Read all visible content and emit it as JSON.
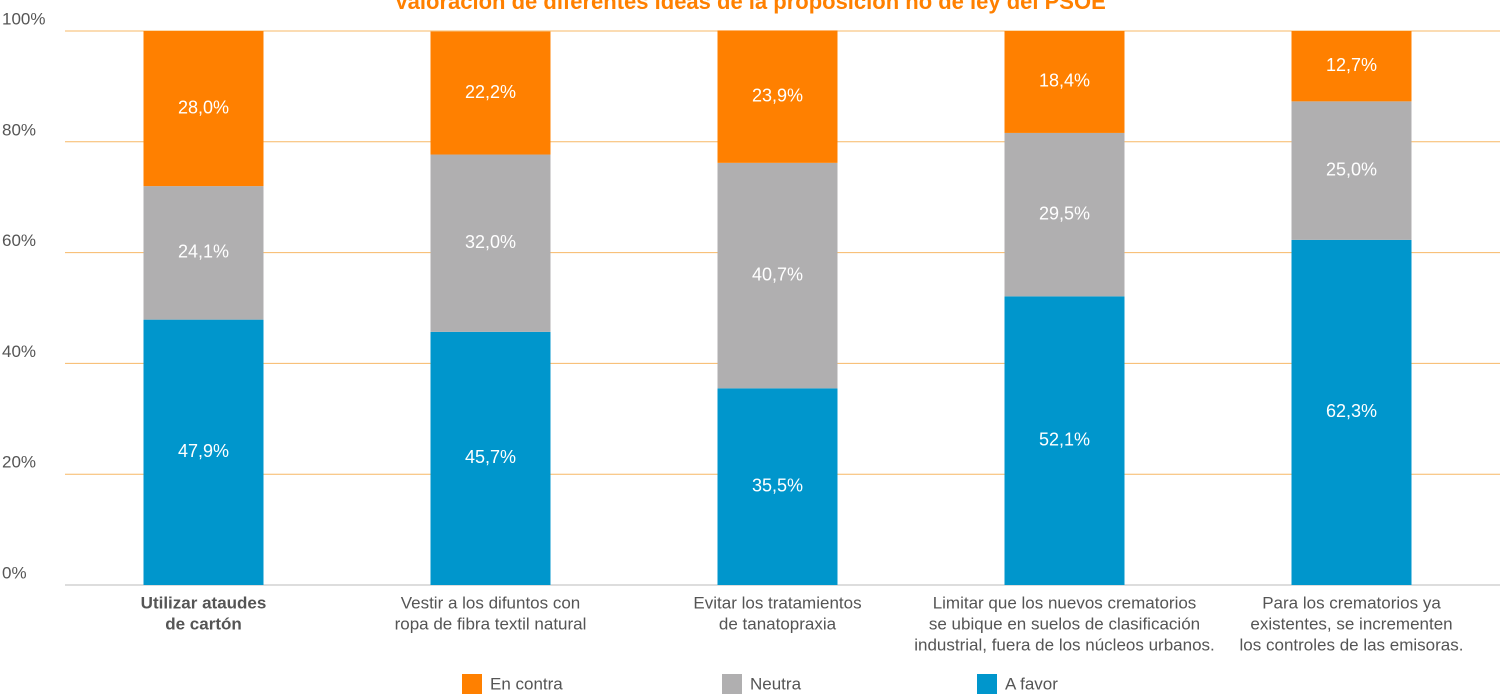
{
  "chart_data": {
    "type": "stacked_bar",
    "title": "Valoración de diferentes ideas de la proposición no de ley del PSOE",
    "categories": [
      [
        "Utilizar ataudes",
        "de cartón"
      ],
      [
        "Vestir a los difuntos con",
        "ropa de fibra textil natural"
      ],
      [
        "Evitar los tratamientos",
        "de tanatopraxia"
      ],
      [
        "Limitar que los nuevos  crematorios",
        "se ubique en suelos de clasificación",
        "industrial, fuera de los núcleos urbanos."
      ],
      [
        "Para los crematorios ya",
        "existentes, se incrementen",
        "los controles de las emisoras."
      ]
    ],
    "series": [
      {
        "name": "En contra",
        "color": "#ff8000",
        "values": [
          28.0,
          22.2,
          23.9,
          18.4,
          12.7
        ],
        "value_labels": [
          "28,0%",
          "22,2%",
          "23,9%",
          "18,4%",
          "12,7%"
        ]
      },
      {
        "name": "Neutra",
        "color": "#b0afb0",
        "values": [
          24.1,
          32.0,
          40.7,
          29.5,
          25.0
        ],
        "value_labels": [
          "24,1%",
          "32,0%",
          "40,7%",
          "29,5%",
          "25,0%"
        ]
      },
      {
        "name": "A favor",
        "color": "#0096cc",
        "values": [
          47.9,
          45.7,
          35.5,
          52.1,
          62.3
        ],
        "value_labels": [
          "47,9%",
          "45,7%",
          "35,5%",
          "52,1%",
          "62,3%"
        ]
      }
    ],
    "ylim": [
      0,
      100
    ],
    "yticks": [
      {
        "value": 0,
        "label": "0%"
      },
      {
        "value": 20,
        "label": "20%"
      },
      {
        "value": 40,
        "label": "40%"
      },
      {
        "value": 60,
        "label": "60%"
      },
      {
        "value": 80,
        "label": "80%"
      },
      {
        "value": 100,
        "label": "100%"
      }
    ],
    "grid": true,
    "legend": "bottom"
  }
}
